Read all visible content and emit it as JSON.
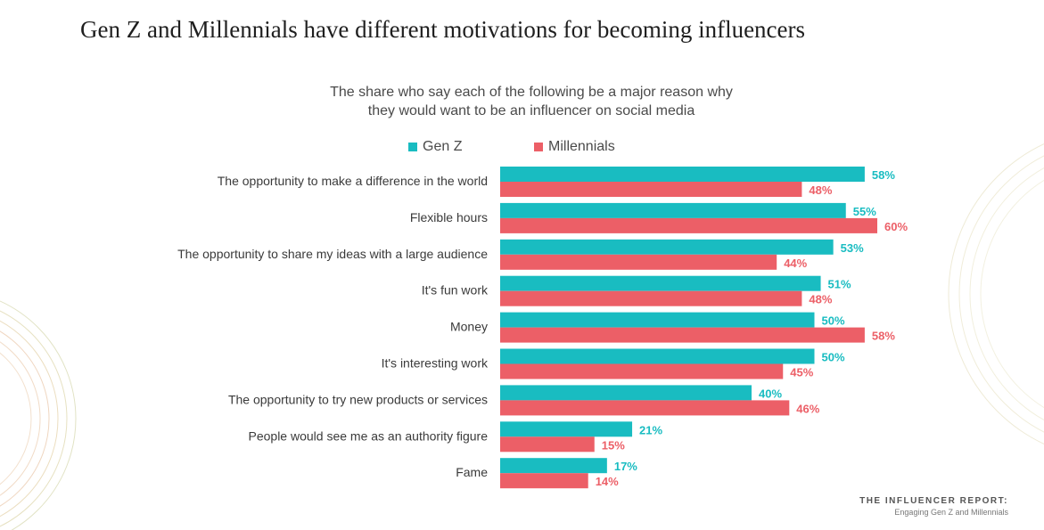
{
  "title": "Gen Z and Millennials have different motivations for becoming influencers",
  "subtitle_line1": "The share who say each of the following be a major reason why",
  "subtitle_line2": "they would want to be an influencer on social media",
  "footer": {
    "title": "THE INFLUENCER REPORT:",
    "subtitle": "Engaging Gen Z and Millennials"
  },
  "colors": {
    "genz": "#19bcc1",
    "millennials": "#ec5f67"
  },
  "chart_data": {
    "type": "bar",
    "orientation": "horizontal",
    "title": "The share who say each of the following be a major reason why they would want to be an influencer on social media",
    "categories": [
      "The opportunity to make a difference in the world",
      "Flexible hours",
      "The opportunity to share my ideas with a large audience",
      "It's fun work",
      "Money",
      "It's interesting work",
      "The opportunity to try new products or services",
      "People would see me as an authority figure",
      "Fame"
    ],
    "series": [
      {
        "name": "Gen Z",
        "values": [
          58,
          55,
          53,
          51,
          50,
          50,
          40,
          21,
          17
        ],
        "color": "#19bcc1"
      },
      {
        "name": "Millennials",
        "values": [
          48,
          60,
          44,
          48,
          58,
          45,
          46,
          15,
          14
        ],
        "color": "#ec5f67"
      }
    ],
    "value_suffix": "%",
    "xlim": [
      0,
      60
    ],
    "legend": "top",
    "grid": false
  }
}
